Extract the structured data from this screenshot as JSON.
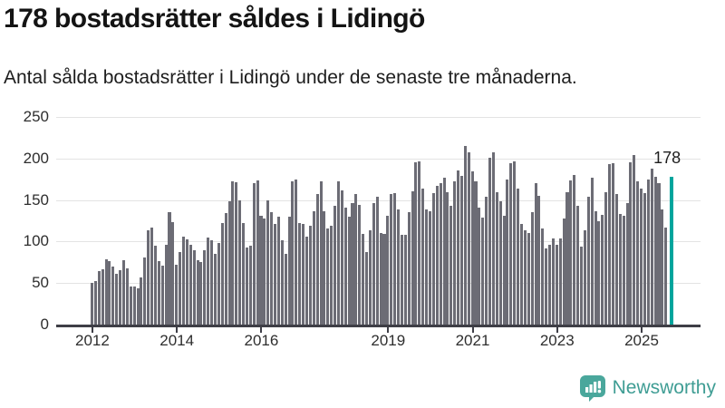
{
  "header": {
    "title": "178 bostadsrätter såldes i Lidingö",
    "subtitle": "Antal sålda bostadsrätter i Lidingö under de senaste tre månaderna."
  },
  "chart_data": {
    "type": "bar",
    "title": "178 bostadsrätter såldes i Lidingö",
    "xlabel": "",
    "ylabel": "",
    "ylim": [
      0,
      250
    ],
    "grid": true,
    "legend": false,
    "x_start_year": 2012,
    "x_tick_labels": [
      "2012",
      "2014",
      "2016",
      "2019",
      "2021",
      "2023",
      "2025"
    ],
    "y_tick_labels": [
      "0",
      "50",
      "100",
      "150",
      "200",
      "250"
    ],
    "frequency": "monthly",
    "values_by_year": {
      "2012": [
        50,
        52,
        64,
        67,
        79,
        76,
        70,
        61,
        66,
        78,
        68,
        46
      ],
      "2013": [
        46,
        44,
        57,
        81,
        114,
        117,
        95,
        76,
        71,
        96,
        135,
        123
      ],
      "2014": [
        72,
        87,
        106,
        103,
        96,
        89,
        78,
        75,
        90,
        105,
        102,
        85
      ],
      "2015": [
        98,
        122,
        134,
        148,
        173,
        171,
        150,
        122,
        93,
        95,
        170,
        174
      ],
      "2016": [
        131,
        128,
        150,
        135,
        121,
        130,
        102,
        85,
        130,
        172,
        175,
        122
      ],
      "2017": [
        121,
        106,
        119,
        137,
        157,
        172,
        137,
        116,
        119,
        143,
        172,
        162
      ],
      "2018": [
        141,
        130,
        146,
        157,
        144,
        109,
        87,
        114,
        146,
        154,
        110,
        109
      ],
      "2019": [
        131,
        157,
        158,
        139,
        108,
        108,
        135,
        160,
        195,
        197,
        164,
        139
      ],
      "2020": [
        137,
        158,
        167,
        170,
        177,
        159,
        143,
        172,
        186,
        179,
        215,
        207
      ],
      "2021": [
        185,
        172,
        141,
        129,
        154,
        201,
        207,
        159,
        148,
        131,
        175,
        194
      ],
      "2022": [
        196,
        164,
        121,
        114,
        110,
        135,
        170,
        155,
        116,
        92,
        96,
        104
      ],
      "2023": [
        96,
        104,
        128,
        159,
        174,
        180,
        143,
        94,
        114,
        154,
        177,
        137
      ],
      "2024": [
        125,
        132,
        159,
        193,
        194,
        157,
        133,
        131,
        146,
        195,
        204,
        172
      ],
      "2025": [
        164,
        158,
        175,
        188,
        178,
        170,
        139,
        117,
        178
      ]
    },
    "highlight": {
      "index": 164,
      "value": 178,
      "label": "178",
      "color": "#00a59d"
    },
    "bar_color": "#6c6c75",
    "grid_color": "#e3e3e3"
  },
  "footer": {
    "brand": "Newsworthy",
    "logo_icon": "newsworthy-speech-bubble-chart-icon",
    "brand_color": "#3f9d94"
  }
}
